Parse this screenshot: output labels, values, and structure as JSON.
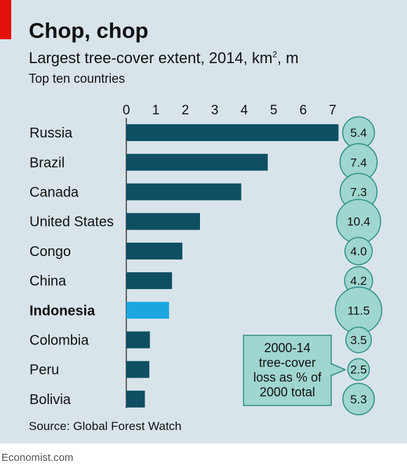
{
  "header": {
    "title": "Chop, chop",
    "subtitle_main": "Largest tree-cover extent, 2014, km",
    "subtitle_sup": "2",
    "subtitle_end": ", m",
    "subsubtitle": "Top ten countries"
  },
  "footer": {
    "source": "Source: Global Forest Watch",
    "brand": "Economist.com"
  },
  "colors": {
    "bar": "#0e4f63",
    "highlight": "#1aa6de",
    "bubble_fill": "#9fd6cf",
    "bubble_stroke": "#2e8f86"
  },
  "chart_data": {
    "type": "bar",
    "orientation": "horizontal",
    "categories": [
      "Russia",
      "Brazil",
      "Canada",
      "United States",
      "Congo",
      "China",
      "Indonesia",
      "Colombia",
      "Peru",
      "Bolivia"
    ],
    "values": [
      7.2,
      4.8,
      3.9,
      2.5,
      1.9,
      1.55,
      1.45,
      0.8,
      0.78,
      0.63
    ],
    "highlight": "Indonesia",
    "xlim": [
      0,
      7
    ],
    "xticks": [
      "0",
      "1",
      "2",
      "3",
      "4",
      "5",
      "6",
      "7"
    ],
    "xtick_values": [
      0,
      1,
      2,
      3,
      4,
      5,
      6,
      7
    ],
    "loss_values": [
      "5.4",
      "7.4",
      "7.3",
      "10.4",
      "4.0",
      "4.2",
      "11.5",
      "3.5",
      "2.5",
      "5.3"
    ],
    "annotation": [
      "2000-14",
      "tree-cover",
      "loss as % of",
      "2000 total"
    ]
  }
}
